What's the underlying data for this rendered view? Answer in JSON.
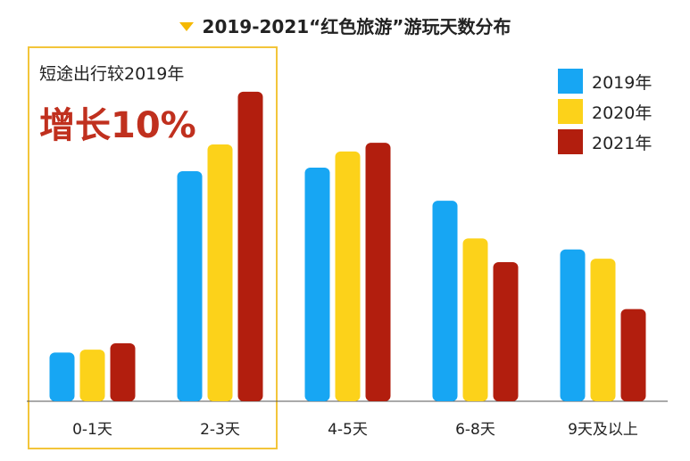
{
  "title": "2019-2021“红色旅游”游玩天数分布",
  "callout": {
    "subtitle": "短途出行较2019年",
    "headline": "增长10%"
  },
  "colors": {
    "2019年": "#17a6f3",
    "2020年": "#fcd21a",
    "2021年": "#b21e0e",
    "highlight": "#f3c53a",
    "marker": "#f5b800"
  },
  "chart_data": {
    "type": "bar",
    "categories": [
      "0-1天",
      "2-3天",
      "4-5天",
      "6-8天",
      "9天及以上"
    ],
    "series": [
      {
        "name": "2019年",
        "values": [
          8.4,
          39.7,
          40.3,
          34.6,
          26.2
        ]
      },
      {
        "name": "2020年",
        "values": [
          8.9,
          44.3,
          43.1,
          28.1,
          24.6
        ]
      },
      {
        "name": "2021年",
        "values": [
          10.0,
          53.4,
          44.6,
          24.0,
          15.9
        ]
      }
    ],
    "xlabel": "",
    "ylabel": "",
    "ylim": [
      0,
      60
    ],
    "grid": false,
    "legend": "top-right"
  }
}
